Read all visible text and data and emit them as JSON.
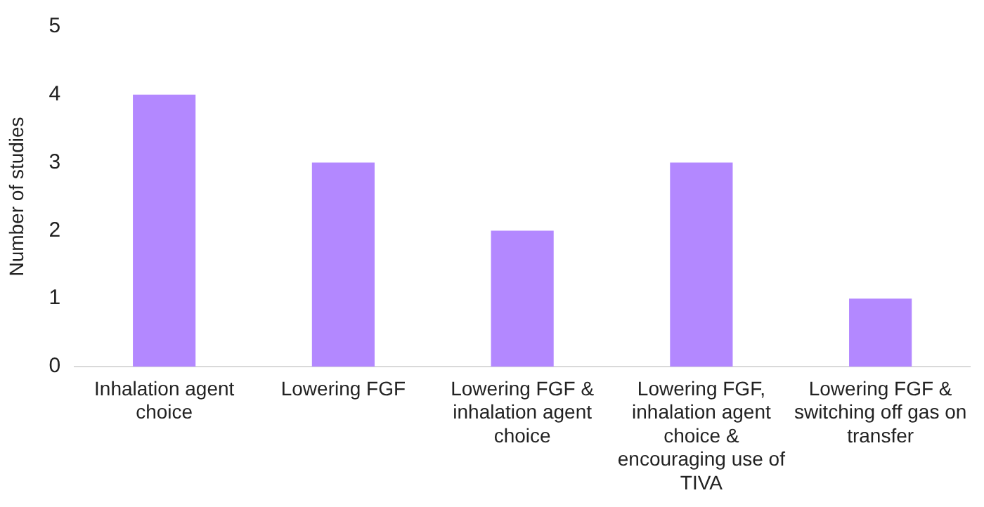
{
  "chart_data": {
    "type": "bar",
    "ylabel": "Number of studies",
    "categories": [
      "Inhalation agent choice",
      "Lowering FGF",
      "Lowering FGF & inhalation agent choice",
      "Lowering FGF, inhalation agent choice & encouraging use of TIVA",
      "Lowering FGF & switching off gas on transfer"
    ],
    "values": [
      4,
      3,
      2,
      3,
      1
    ],
    "color": "#b388ff",
    "ylim": [
      0,
      5
    ],
    "yticks": [
      0,
      1,
      2,
      3,
      4,
      5
    ],
    "grid": false,
    "legend": false
  }
}
